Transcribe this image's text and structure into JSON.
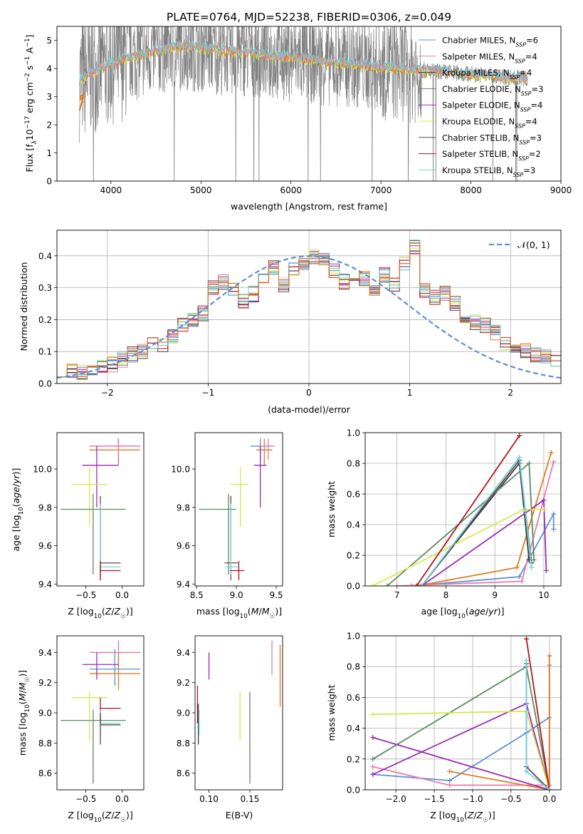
{
  "figure_title": "PLATE=0764, MJD=52238, FIBERID=0306, z=0.049",
  "colors": {
    "Chabrier MILES": "#5b8fd6",
    "Salpeter MILES": "#e87aa8",
    "Kroupa MILES": "#3a3a3a",
    "Chabrier ELODIE": "#5c8a63",
    "Salpeter ELODIE": "#9a2ab5",
    "Kroupa ELODIE": "#d6e84a",
    "Chabrier STELIB": "#6b4545",
    "Salpeter STELIB": "#b3141a",
    "Kroupa STELIB": "#6fd4dd",
    "extra": "#e07a1f",
    "data": "#808080",
    "gaussian": "#5b8fd6"
  },
  "chart_data": [
    {
      "id": "spectrum",
      "type": "line",
      "title": "PLATE=0764, MJD=52238, FIBERID=0306, z=0.049",
      "xlabel": "wavelength [Angstrom, rest frame]",
      "ylabel": "Flux [f_λ 10^-17 erg cm^-2 s^-1 A^-1]",
      "xlim": [
        3400,
        9000
      ],
      "ylim": [
        0,
        5.5
      ],
      "xticks": [
        "4000",
        "5000",
        "6000",
        "7000",
        "8000",
        "9000"
      ],
      "yticks": [
        "0",
        "1",
        "2",
        "3",
        "4",
        "5"
      ],
      "legend_position": "right",
      "legend": [
        {
          "model": "Chabrier MILES",
          "n": "6"
        },
        {
          "model": "Salpeter MILES",
          "n": "4"
        },
        {
          "model": "Kroupa MILES",
          "n": "4"
        },
        {
          "model": "Chabrier ELODIE",
          "n": "3"
        },
        {
          "model": "Salpeter ELODIE",
          "n": "4"
        },
        {
          "model": "Kroupa ELODIE",
          "n": "4"
        },
        {
          "model": "Chabrier STELIB",
          "n": "3"
        },
        {
          "model": "Salpeter STELIB",
          "n": "2"
        },
        {
          "model": "Kroupa STELIB",
          "n": "3"
        }
      ],
      "model_continuum": {
        "x": [
          3650,
          3800,
          4000,
          4200,
          4400,
          4600,
          4800,
          5000,
          5200,
          5400,
          5600,
          5800,
          6000,
          6200,
          6400,
          6600,
          6800,
          7000,
          7200,
          7400,
          7600,
          7800,
          8000,
          8200,
          8400,
          8600
        ],
        "y": [
          3.6,
          3.9,
          4.2,
          4.4,
          4.55,
          4.7,
          4.8,
          4.75,
          4.65,
          4.6,
          4.55,
          4.45,
          4.4,
          4.35,
          4.25,
          4.2,
          4.15,
          4.05,
          4.0,
          3.95,
          3.9,
          3.85,
          3.8,
          3.75,
          3.7,
          3.65
        ]
      }
    },
    {
      "id": "residuals",
      "type": "line",
      "xlabel": "(data-model)/error",
      "ylabel": "Normed distribution",
      "xlim": [
        -2.5,
        2.5
      ],
      "ylim": [
        0,
        0.48
      ],
      "xticks": [
        "−2",
        "−1",
        "0",
        "1",
        "2"
      ],
      "yticks": [
        "0.0",
        "0.1",
        "0.2",
        "0.3",
        "0.4"
      ],
      "legend": [
        "𝒩(0, 1)"
      ],
      "legend_position": "top-right",
      "bin_width": 0.1,
      "hist_base": [
        0.045,
        0.04,
        0.038,
        0.045,
        0.05,
        0.06,
        0.075,
        0.09,
        0.1,
        0.12,
        0.12,
        0.15,
        0.18,
        0.2,
        0.22,
        0.3,
        0.32,
        0.29,
        0.26,
        0.28,
        0.32,
        0.36,
        0.31,
        0.36,
        0.37,
        0.4,
        0.39,
        0.35,
        0.32,
        0.31,
        0.33,
        0.3,
        0.34,
        0.31,
        0.38,
        0.43,
        0.29,
        0.27,
        0.28,
        0.25,
        0.2,
        0.19,
        0.18,
        0.16,
        0.12,
        0.11,
        0.1,
        0.09,
        0.085,
        0.07
      ]
    },
    {
      "id": "age_vs_Z",
      "type": "scatter",
      "xlabel": "Z [log10(Z/Z☉)]",
      "ylabel": "age  [log10(age/yr)]",
      "xlim": [
        -0.9,
        0.3
      ],
      "ylim": [
        9.39,
        10.19
      ],
      "xticks": [
        "−0.5",
        "0.0"
      ],
      "yticks": [
        "9.4",
        "9.6",
        "9.8",
        "10.0"
      ],
      "points": [
        {
          "c": "Chabrier MILES",
          "x": -0.05,
          "xe": [
            -0.45,
            0.25
          ],
          "y": 10.12,
          "ye": [
            10.04,
            10.16
          ]
        },
        {
          "c": "extra",
          "x": -0.05,
          "xe": [
            -0.45,
            0.25
          ],
          "y": 10.1,
          "ye": [
            10.02,
            10.16
          ]
        },
        {
          "c": "Salpeter MILES",
          "x": -0.05,
          "xe": [
            -0.45,
            0.25
          ],
          "y": 10.12,
          "ye": [
            10.05,
            10.16
          ]
        },
        {
          "c": "Salpeter ELODIE",
          "x": -0.35,
          "xe": [
            -0.55,
            -0.05
          ],
          "y": 10.02,
          "ye": [
            9.8,
            10.12
          ]
        },
        {
          "c": "Kroupa ELODIE",
          "x": -0.45,
          "xe": [
            -0.7,
            -0.2
          ],
          "y": 9.92,
          "ye": [
            9.7,
            10.01
          ]
        },
        {
          "c": "Chabrier ELODIE",
          "x": -0.4,
          "xe": [
            -0.85,
            0.05
          ],
          "y": 9.79,
          "ye": [
            9.45,
            9.87
          ]
        },
        {
          "c": "Chabrier STELIB",
          "x": -0.3,
          "xe": [
            -0.3,
            -0.02
          ],
          "y": 9.51,
          "ye": [
            9.42,
            9.86
          ]
        },
        {
          "c": "Kroupa STELIB",
          "x": -0.3,
          "xe": [
            -0.3,
            -0.02
          ],
          "y": 9.49,
          "ye": [
            9.45,
            9.82
          ]
        },
        {
          "c": "Salpeter STELIB",
          "x": -0.3,
          "xe": [
            -0.3,
            -0.02
          ],
          "y": 9.47,
          "ye": [
            9.42,
            9.52
          ]
        }
      ]
    },
    {
      "id": "age_vs_mass",
      "type": "scatter",
      "xlabel": "mass [log10(M/M☉)]",
      "ylabel": "",
      "xlim": [
        8.48,
        9.58
      ],
      "ylim": [
        9.39,
        10.19
      ],
      "xticks": [
        "8.5",
        "9.0",
        "9.5"
      ],
      "yticks": [
        "9.4",
        "9.6",
        "9.8",
        "10.0"
      ],
      "points": [
        {
          "c": "Chabrier MILES",
          "x": 9.3,
          "xe": [
            9.18,
            9.42
          ],
          "y": 10.12,
          "ye": [
            10.04,
            10.16
          ]
        },
        {
          "c": "Salpeter MILES",
          "x": 9.4,
          "xe": [
            9.3,
            9.48
          ],
          "y": 10.12,
          "ye": [
            10.05,
            10.16
          ]
        },
        {
          "c": "extra",
          "x": 9.35,
          "xe": [
            9.25,
            9.45
          ],
          "y": 10.1,
          "ye": [
            10.02,
            10.16
          ]
        },
        {
          "c": "Salpeter ELODIE",
          "x": 9.3,
          "xe": [
            9.22,
            9.38
          ],
          "y": 10.02,
          "ye": [
            9.8,
            10.12
          ]
        },
        {
          "c": "Kroupa ELODIE",
          "x": 9.05,
          "xe": [
            8.93,
            9.15
          ],
          "y": 9.92,
          "ye": [
            9.7,
            10.01
          ]
        },
        {
          "c": "Chabrier ELODIE",
          "x": 8.9,
          "xe": [
            8.53,
            9.0
          ],
          "y": 9.79,
          "ye": [
            9.45,
            9.87
          ]
        },
        {
          "c": "Chabrier STELIB",
          "x": 8.93,
          "xe": [
            8.85,
            9.02
          ],
          "y": 9.51,
          "ye": [
            9.42,
            9.86
          ]
        },
        {
          "c": "Kroupa STELIB",
          "x": 8.93,
          "xe": [
            8.86,
            9.02
          ],
          "y": 9.49,
          "ye": [
            9.45,
            9.82
          ]
        },
        {
          "c": "Salpeter STELIB",
          "x": 9.03,
          "xe": [
            8.92,
            9.1
          ],
          "y": 9.47,
          "ye": [
            9.42,
            9.52
          ]
        }
      ]
    },
    {
      "id": "massweight_vs_age",
      "type": "line",
      "xlabel": "age  [log10(age/yr)]",
      "ylabel": "mass weight",
      "xlim": [
        6.35,
        10.35
      ],
      "ylim": [
        0,
        1
      ],
      "xticks": [
        "7",
        "8",
        "9",
        "10"
      ],
      "yticks": [
        "0.0",
        "0.2",
        "0.4",
        "0.6",
        "0.8",
        "1.0"
      ],
      "series": [
        {
          "c": "Chabrier MILES",
          "x": [
            7.3,
            9.5,
            10.2,
            10.2
          ],
          "y": [
            0.0,
            0.06,
            0.47,
            0.37
          ]
        },
        {
          "c": "Salpeter MILES",
          "x": [
            7.0,
            9.55,
            10.2
          ],
          "y": [
            0.0,
            0.03,
            0.81
          ]
        },
        {
          "c": "extra",
          "x": [
            7.4,
            9.45,
            10.15
          ],
          "y": [
            0.0,
            0.12,
            0.87
          ]
        },
        {
          "c": "Kroupa MILES",
          "x": [
            7.5,
            9.5,
            9.7
          ],
          "y": [
            0.0,
            0.8,
            0.17
          ]
        },
        {
          "c": "Chabrier ELODIE",
          "x": [
            6.8,
            9.7,
            9.8
          ],
          "y": [
            0.0,
            0.8,
            0.17
          ]
        },
        {
          "c": "Salpeter ELODIE",
          "x": [
            7.5,
            10.0,
            10.05
          ],
          "y": [
            0.0,
            0.56,
            0.1
          ]
        },
        {
          "c": "Kroupa ELODIE",
          "x": [
            6.5,
            9.6,
            10.0
          ],
          "y": [
            0.0,
            0.5,
            0.5
          ]
        },
        {
          "c": "Chabrier STELIB",
          "x": [
            7.5,
            9.5,
            9.75
          ],
          "y": [
            0.0,
            0.82,
            0.15
          ]
        },
        {
          "c": "Salpeter STELIB",
          "x": [
            7.4,
            9.5
          ],
          "y": [
            0.0,
            0.98
          ]
        },
        {
          "c": "Kroupa STELIB",
          "x": [
            7.5,
            9.5,
            9.75
          ],
          "y": [
            0.0,
            0.84,
            0.12
          ]
        }
      ]
    },
    {
      "id": "mass_vs_Z",
      "type": "scatter",
      "xlabel": "Z [log10(Z/Z☉)]",
      "ylabel": "mass [log10(M/M☉)]",
      "xlim": [
        -0.9,
        0.3
      ],
      "ylim": [
        8.49,
        9.51
      ],
      "xticks": [
        "−0.5",
        "0.0"
      ],
      "yticks": [
        "8.6",
        "8.8",
        "9.0",
        "9.2",
        "9.4"
      ],
      "points": [
        {
          "c": "Salpeter MILES",
          "x": -0.05,
          "xe": [
            -0.45,
            0.25
          ],
          "y": 9.4,
          "ye": [
            9.3,
            9.48
          ]
        },
        {
          "c": "Chabrier MILES",
          "x": -0.1,
          "xe": [
            -0.45,
            0.25
          ],
          "y": 9.29,
          "ye": [
            9.18,
            9.42
          ]
        },
        {
          "c": "extra",
          "x": -0.05,
          "xe": [
            -0.45,
            0.25
          ],
          "y": 9.26,
          "ye": [
            9.15,
            9.4
          ]
        },
        {
          "c": "Salpeter ELODIE",
          "x": -0.35,
          "xe": [
            -0.55,
            -0.05
          ],
          "y": 9.32,
          "ye": [
            9.22,
            9.4
          ]
        },
        {
          "c": "Kroupa ELODIE",
          "x": -0.45,
          "xe": [
            -0.7,
            -0.2
          ],
          "y": 9.1,
          "ye": [
            8.82,
            9.14
          ]
        },
        {
          "c": "Chabrier ELODIE",
          "x": -0.4,
          "xe": [
            -0.85,
            0.05
          ],
          "y": 8.95,
          "ye": [
            8.53,
            9.02
          ]
        },
        {
          "c": "Salpeter STELIB",
          "x": -0.3,
          "xe": [
            -0.3,
            -0.02
          ],
          "y": 9.03,
          "ye": [
            8.92,
            9.1
          ]
        },
        {
          "c": "Kroupa STELIB",
          "x": -0.3,
          "xe": [
            -0.3,
            -0.02
          ],
          "y": 8.93,
          "ye": [
            8.85,
            9.02
          ]
        },
        {
          "c": "Chabrier STELIB",
          "x": -0.3,
          "xe": [
            -0.3,
            -0.02
          ],
          "y": 8.92,
          "ye": [
            8.79,
            9.0
          ]
        }
      ]
    },
    {
      "id": "mass_vs_ebv",
      "type": "scatter",
      "xlabel": "E(B-V)",
      "ylabel": "",
      "xlim": [
        0.083,
        0.19
      ],
      "ylim": [
        8.49,
        9.51
      ],
      "xticks": [
        "0.10",
        "0.15"
      ],
      "yticks": [
        "8.6",
        "8.8",
        "9.0",
        "9.2",
        "9.4"
      ],
      "points": [
        {
          "c": "Kroupa MILES",
          "x": 0.087,
          "ye": [
            8.79,
            9.06
          ]
        },
        {
          "c": "Salpeter STELIB",
          "x": 0.086,
          "ye": [
            8.93,
            9.18
          ]
        },
        {
          "c": "Kroupa STELIB",
          "x": 0.088,
          "ye": [
            8.85,
            9.02
          ]
        },
        {
          "c": "Salpeter ELODIE",
          "x": 0.1,
          "ye": [
            9.22,
            9.4
          ]
        },
        {
          "c": "Kroupa ELODIE",
          "x": 0.138,
          "ye": [
            8.82,
            9.14
          ]
        },
        {
          "c": "Chabrier ELODIE",
          "x": 0.15,
          "ye": [
            8.53,
            9.14
          ]
        },
        {
          "c": "Salpeter MILES",
          "x": 0.177,
          "ye": [
            9.25,
            9.48
          ]
        },
        {
          "c": "extra",
          "x": 0.187,
          "ye": [
            9.04,
            9.45
          ]
        }
      ]
    },
    {
      "id": "massweight_vs_Z",
      "type": "line",
      "xlabel": "Z [log10(Z/Z☉)]",
      "ylabel": "mass weight",
      "xlim": [
        -2.4,
        0.15
      ],
      "ylim": [
        0,
        1
      ],
      "xticks": [
        "−2.0",
        "−1.5",
        "−1.0",
        "−0.5",
        "0.0"
      ],
      "yticks": [
        "0.0",
        "0.2",
        "0.4",
        "0.6",
        "0.8",
        "1.0"
      ],
      "series": [
        {
          "c": "Chabrier MILES",
          "x": [
            -2.3,
            -1.3,
            -0.3,
            0.0
          ],
          "y": [
            0.1,
            0.06,
            0.37,
            0.47
          ]
        },
        {
          "c": "Salpeter MILES",
          "x": [
            -2.3,
            -1.3,
            0.0,
            0.0
          ],
          "y": [
            0.15,
            0.03,
            0.03,
            0.81
          ]
        },
        {
          "c": "extra",
          "x": [
            -1.3,
            0.0,
            0.0
          ],
          "y": [
            0.12,
            0.0,
            0.87
          ]
        },
        {
          "c": "Chabrier ELODIE",
          "x": [
            -2.3,
            -0.3,
            0.0
          ],
          "y": [
            0.2,
            0.8,
            0.0
          ]
        },
        {
          "c": "Salpeter ELODIE",
          "x": [
            -2.3,
            -0.3,
            0.0,
            -2.3
          ],
          "y": [
            0.1,
            0.56,
            0.0,
            0.34
          ]
        },
        {
          "c": "Kroupa ELODIE",
          "x": [
            -2.3,
            -0.3,
            0.0
          ],
          "y": [
            0.49,
            0.51,
            0.0
          ]
        },
        {
          "c": "Chabrier STELIB",
          "x": [
            -0.3,
            -0.3,
            0.0
          ],
          "y": [
            0.82,
            0.15,
            0.0
          ]
        },
        {
          "c": "Salpeter STELIB",
          "x": [
            -0.3,
            0.0
          ],
          "y": [
            0.98,
            0.0
          ]
        },
        {
          "c": "Kroupa STELIB",
          "x": [
            -0.3,
            -0.3,
            0.0
          ],
          "y": [
            0.84,
            0.12,
            0.0
          ]
        }
      ]
    }
  ]
}
